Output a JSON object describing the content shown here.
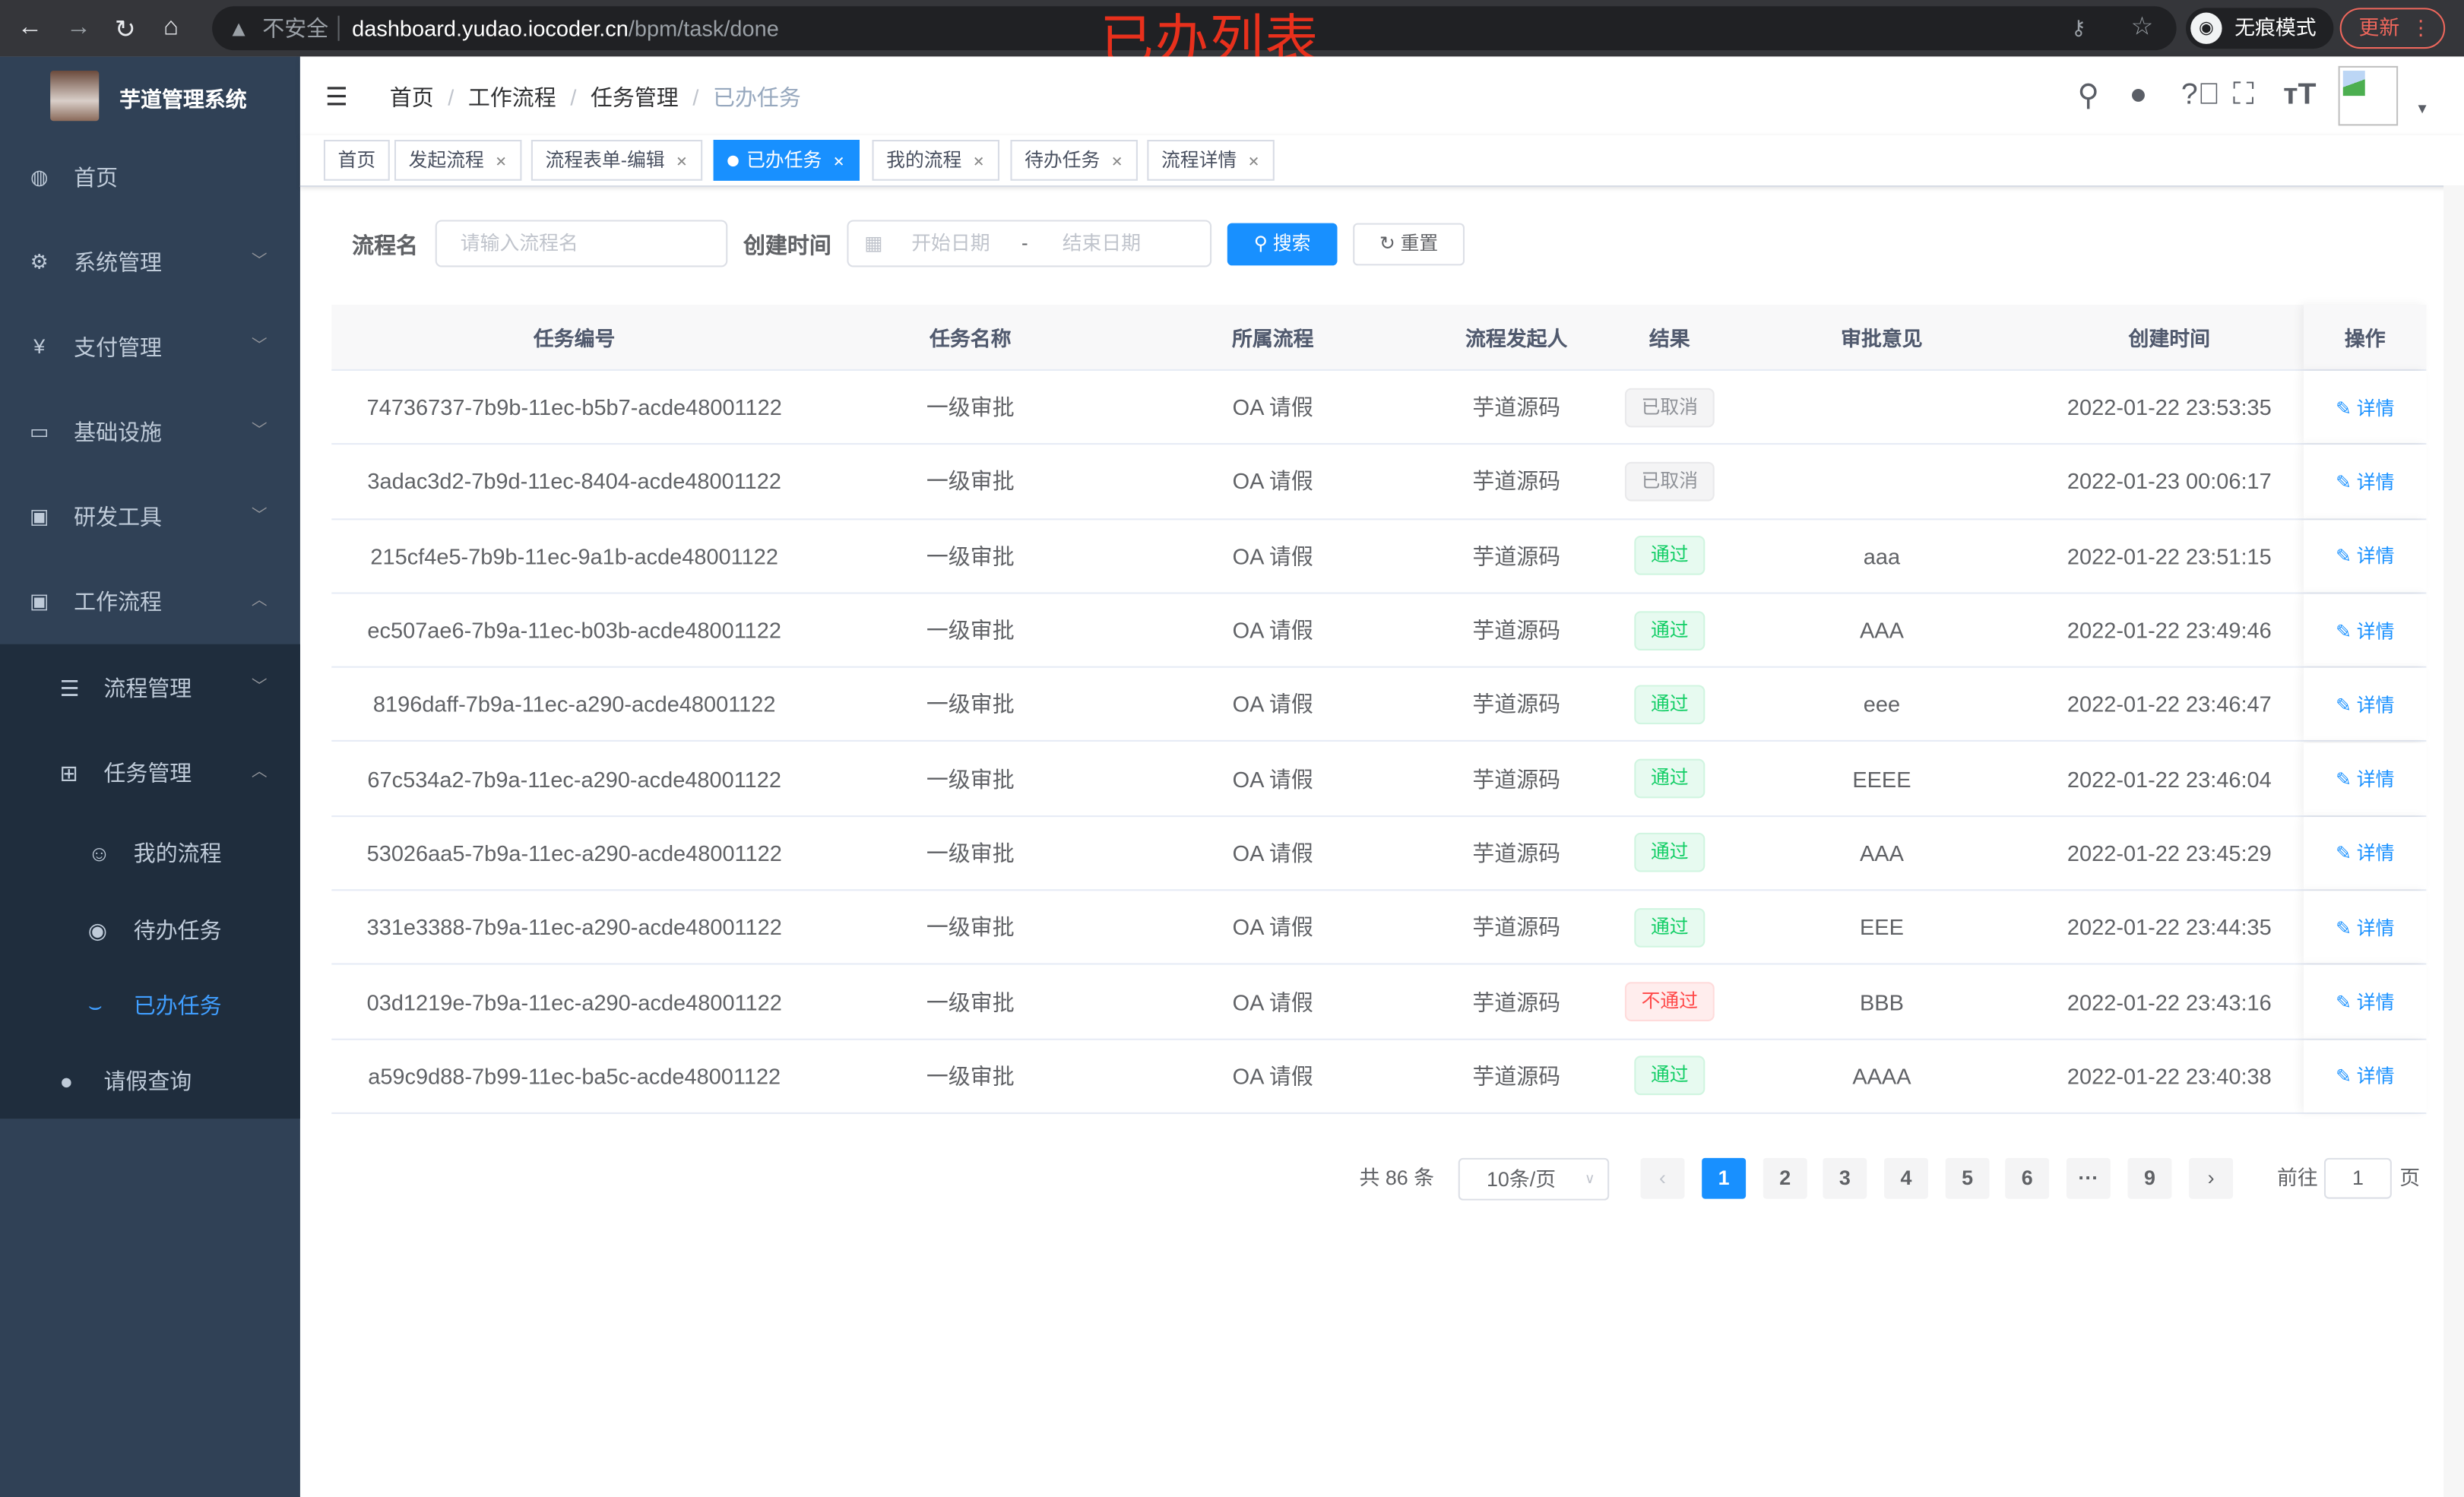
{
  "browser": {
    "insecure_label": "不安全",
    "url_host": "dashboard.yudao.iocoder.cn",
    "url_path": "/bpm/task/done",
    "incognito_label": "无痕模式",
    "update_label": "更新"
  },
  "annotation_title": "已办列表",
  "sidebar": {
    "brand": "芋道管理系统",
    "items": [
      {
        "label": "首页",
        "icon": "dashboard-icon"
      },
      {
        "label": "系统管理",
        "icon": "gear-icon"
      },
      {
        "label": "支付管理",
        "icon": "yuan-icon"
      },
      {
        "label": "基础设施",
        "icon": "monitor-icon"
      },
      {
        "label": "研发工具",
        "icon": "toolbox-icon"
      },
      {
        "label": "工作流程",
        "icon": "toolbox-icon"
      }
    ],
    "subitems": [
      {
        "label": "流程管理",
        "icon": "list-icon"
      },
      {
        "label": "任务管理",
        "icon": "tree-icon"
      },
      {
        "label": "我的流程",
        "icon": "user-chat-icon"
      },
      {
        "label": "待办任务",
        "icon": "eye-icon"
      },
      {
        "label": "已办任务",
        "icon": "closed-eye-icon"
      },
      {
        "label": "请假查询",
        "icon": "user-icon"
      }
    ]
  },
  "breadcrumb": [
    "首页",
    "工作流程",
    "任务管理",
    "已办任务"
  ],
  "tags": [
    "首页",
    "发起流程",
    "流程表单-编辑",
    "已办任务",
    "我的流程",
    "待办任务",
    "流程详情"
  ],
  "active_tag": "已办任务",
  "search": {
    "name_label": "流程名",
    "name_placeholder": "请输入流程名",
    "time_label": "创建时间",
    "start_placeholder": "开始日期",
    "range_sep": "-",
    "end_placeholder": "结束日期",
    "search_button": "搜索",
    "reset_button": "重置"
  },
  "table": {
    "columns": [
      "任务编号",
      "任务名称",
      "所属流程",
      "流程发起人",
      "结果",
      "审批意见",
      "创建时间",
      "操作"
    ],
    "rows": [
      {
        "id": "74736737-7b9b-11ec-b5b7-acde48001122",
        "name": "一级审批",
        "process": "OA 请假",
        "starter": "芋道源码",
        "result": "已取消",
        "result_type": "cancel",
        "comment": "",
        "time": "2022-01-22 23:53:35",
        "action": "详情"
      },
      {
        "id": "3adac3d2-7b9d-11ec-8404-acde48001122",
        "name": "一级审批",
        "process": "OA 请假",
        "starter": "芋道源码",
        "result": "已取消",
        "result_type": "cancel",
        "comment": "",
        "time": "2022-01-23 00:06:17",
        "action": "详情"
      },
      {
        "id": "215cf4e5-7b9b-11ec-9a1b-acde48001122",
        "name": "一级审批",
        "process": "OA 请假",
        "starter": "芋道源码",
        "result": "通过",
        "result_type": "pass",
        "comment": "aaa",
        "time": "2022-01-22 23:51:15",
        "action": "详情"
      },
      {
        "id": "ec507ae6-7b9a-11ec-b03b-acde48001122",
        "name": "一级审批",
        "process": "OA 请假",
        "starter": "芋道源码",
        "result": "通过",
        "result_type": "pass",
        "comment": "AAA",
        "time": "2022-01-22 23:49:46",
        "action": "详情"
      },
      {
        "id": "8196daff-7b9a-11ec-a290-acde48001122",
        "name": "一级审批",
        "process": "OA 请假",
        "starter": "芋道源码",
        "result": "通过",
        "result_type": "pass",
        "comment": "eee",
        "time": "2022-01-22 23:46:47",
        "action": "详情"
      },
      {
        "id": "67c534a2-7b9a-11ec-a290-acde48001122",
        "name": "一级审批",
        "process": "OA 请假",
        "starter": "芋道源码",
        "result": "通过",
        "result_type": "pass",
        "comment": "EEEE",
        "time": "2022-01-22 23:46:04",
        "action": "详情"
      },
      {
        "id": "53026aa5-7b9a-11ec-a290-acde48001122",
        "name": "一级审批",
        "process": "OA 请假",
        "starter": "芋道源码",
        "result": "通过",
        "result_type": "pass",
        "comment": "AAA",
        "time": "2022-01-22 23:45:29",
        "action": "详情"
      },
      {
        "id": "331e3388-7b9a-11ec-a290-acde48001122",
        "name": "一级审批",
        "process": "OA 请假",
        "starter": "芋道源码",
        "result": "通过",
        "result_type": "pass",
        "comment": "EEE",
        "time": "2022-01-22 23:44:35",
        "action": "详情"
      },
      {
        "id": "03d1219e-7b9a-11ec-a290-acde48001122",
        "name": "一级审批",
        "process": "OA 请假",
        "starter": "芋道源码",
        "result": "不通过",
        "result_type": "fail",
        "comment": "BBB",
        "time": "2022-01-22 23:43:16",
        "action": "详情"
      },
      {
        "id": "a59c9d88-7b99-11ec-ba5c-acde48001122",
        "name": "一级审批",
        "process": "OA 请假",
        "starter": "芋道源码",
        "result": "通过",
        "result_type": "pass",
        "comment": "AAAA",
        "time": "2022-01-22 23:40:38",
        "action": "详情"
      }
    ]
  },
  "pagination": {
    "total": "共 86 条",
    "page_size": "10条/页",
    "pages": [
      "1",
      "2",
      "3",
      "4",
      "5",
      "6",
      "···",
      "9"
    ],
    "current": "1",
    "goto_label": "前往",
    "goto_value": "1",
    "goto_suffix": "页"
  },
  "colors": {
    "primary": "#1890ff",
    "sidebar": "#304156",
    "submenu": "#1f2d3d",
    "pass": "#13ce66",
    "fail": "#ff4949",
    "annotation": "#e8301c"
  }
}
